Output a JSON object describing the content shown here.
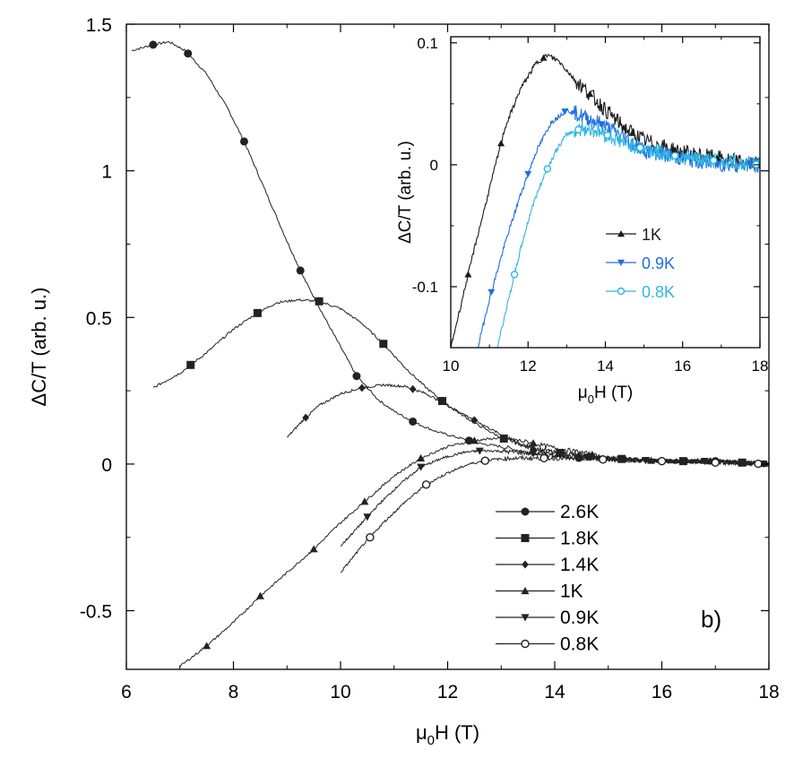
{
  "chart_data": [
    {
      "type": "line",
      "xlabel": "μ0H (T)",
      "ylabel": "ΔC/T (arb. u.)",
      "xlim": [
        6,
        18
      ],
      "ylim": [
        -0.7,
        1.5
      ],
      "x_ticks": [
        "6",
        "8",
        "10",
        "12",
        "14",
        "16",
        "18"
      ],
      "y_ticks": [
        "-0.5",
        "0",
        "0.5",
        "1",
        "1.5"
      ],
      "panel_label": "b)",
      "legend_position": "lower-right",
      "series": [
        {
          "name": "2.6K",
          "marker": "circle-filled",
          "x": [
            6.1,
            6.5,
            6.8,
            7.1,
            7.5,
            7.9,
            8.2,
            8.6,
            9.0,
            9.3,
            9.7,
            10.0,
            10.3,
            10.7,
            11.0,
            11.4,
            11.8,
            12.2,
            12.6,
            13.0,
            13.5,
            14.0,
            14.5,
            15.0,
            16.0,
            17.0,
            18.0
          ],
          "y": [
            1.41,
            1.43,
            1.44,
            1.41,
            1.33,
            1.21,
            1.1,
            0.93,
            0.76,
            0.64,
            0.5,
            0.4,
            0.3,
            0.22,
            0.18,
            0.14,
            0.11,
            0.09,
            0.07,
            0.06,
            0.04,
            0.03,
            0.02,
            0.015,
            0.01,
            0.01,
            0.0
          ],
          "marker_x": [
            6.5,
            7.15,
            8.2,
            9.25,
            10.3,
            11.35,
            12.4,
            14.45,
            17.0
          ]
        },
        {
          "name": "1.8K",
          "marker": "square-filled",
          "x": [
            6.5,
            7.0,
            7.5,
            8.0,
            8.4,
            8.8,
            9.2,
            9.6,
            10.0,
            10.4,
            10.8,
            11.2,
            11.6,
            12.0,
            12.5,
            13.0,
            13.5,
            14.0,
            15.0,
            16.0,
            17.0,
            18.0
          ],
          "y": [
            0.26,
            0.31,
            0.38,
            0.46,
            0.51,
            0.55,
            0.56,
            0.555,
            0.53,
            0.48,
            0.41,
            0.33,
            0.26,
            0.2,
            0.14,
            0.09,
            0.06,
            0.04,
            0.02,
            0.01,
            0.01,
            0.0
          ],
          "marker_x": [
            7.2,
            8.45,
            9.6,
            10.8,
            11.9,
            13.05,
            14.1,
            15.25,
            16.4,
            17.5
          ]
        },
        {
          "name": "1.4K",
          "marker": "diamond-filled",
          "x": [
            9.0,
            9.3,
            9.6,
            10.0,
            10.4,
            10.8,
            11.2,
            11.6,
            12.0,
            12.4,
            12.8,
            13.2,
            13.6,
            14.0,
            15.0,
            16.0,
            17.0,
            18.0
          ],
          "y": [
            0.09,
            0.15,
            0.2,
            0.24,
            0.26,
            0.27,
            0.265,
            0.24,
            0.2,
            0.16,
            0.12,
            0.08,
            0.05,
            0.04,
            0.02,
            0.01,
            0.01,
            0.0
          ],
          "marker_x": [
            9.35,
            10.4,
            11.35,
            12.5,
            13.6,
            14.65
          ]
        },
        {
          "name": "1K",
          "marker": "triangle-up-filled",
          "x": [
            7.0,
            7.5,
            8.0,
            8.5,
            9.0,
            9.5,
            10.0,
            10.5,
            11.0,
            11.5,
            12.0,
            12.5,
            13.0,
            13.5,
            14.0,
            14.5,
            15.0,
            16.0,
            17.0,
            18.0
          ],
          "y": [
            -0.69,
            -0.62,
            -0.54,
            -0.45,
            -0.37,
            -0.29,
            -0.2,
            -0.12,
            -0.04,
            0.02,
            0.06,
            0.08,
            0.09,
            0.075,
            0.055,
            0.04,
            0.02,
            0.01,
            0.01,
            0.0
          ],
          "marker_x": [
            7.5,
            8.5,
            9.5,
            10.45,
            11.5,
            12.5,
            13.6,
            14.7,
            15.8,
            16.9,
            17.9
          ]
        },
        {
          "name": "0.9K",
          "marker": "triangle-down-filled",
          "x": [
            10.0,
            10.3,
            10.7,
            11.1,
            11.5,
            11.9,
            12.3,
            12.6,
            12.9,
            13.3,
            13.7,
            14.0,
            15.0,
            16.0,
            17.0,
            18.0
          ],
          "y": [
            -0.28,
            -0.22,
            -0.14,
            -0.07,
            -0.01,
            0.02,
            0.04,
            0.045,
            0.045,
            0.04,
            0.035,
            0.03,
            0.02,
            0.01,
            0.01,
            0.0
          ],
          "marker_x": [
            10.5,
            11.5,
            12.6,
            13.6,
            14.6,
            15.7,
            16.8,
            17.9
          ]
        },
        {
          "name": "0.8K",
          "marker": "circle-open",
          "x": [
            10.0,
            10.4,
            10.8,
            11.2,
            11.6,
            12.0,
            12.4,
            12.8,
            13.2,
            13.6,
            14.0,
            15.0,
            16.0,
            17.0,
            18.0
          ],
          "y": [
            -0.37,
            -0.28,
            -0.2,
            -0.13,
            -0.07,
            -0.03,
            0.0,
            0.015,
            0.02,
            0.02,
            0.02,
            0.015,
            0.01,
            0.005,
            0.0
          ],
          "marker_x": [
            10.55,
            11.6,
            12.7,
            13.8,
            14.9,
            16.0,
            17.0,
            17.8
          ]
        }
      ]
    },
    {
      "type": "line",
      "inset": true,
      "xlabel": "μ0H (T)",
      "ylabel": "ΔC/T (arb. u.)",
      "xlim": [
        10,
        18
      ],
      "ylim": [
        -0.15,
        0.105
      ],
      "x_ticks": [
        "10",
        "12",
        "14",
        "16",
        "18"
      ],
      "y_ticks": [
        "-0.1",
        "0",
        "0.1"
      ],
      "legend_position": "lower-center",
      "series": [
        {
          "name": "1K",
          "marker": "triangle-up-filled",
          "color": "#1a1a1a",
          "x": [
            10.0,
            10.3,
            10.6,
            11.0,
            11.4,
            11.8,
            12.2,
            12.5,
            12.8,
            13.2,
            13.6,
            14.0,
            14.5,
            15.0,
            16.0,
            17.0,
            18.0
          ],
          "y": [
            -0.15,
            -0.11,
            -0.07,
            -0.02,
            0.03,
            0.062,
            0.083,
            0.09,
            0.085,
            0.07,
            0.058,
            0.045,
            0.03,
            0.02,
            0.01,
            0.005,
            0.0
          ],
          "marker_x": [
            10.45,
            11.3,
            12.4,
            13.6,
            14.7,
            15.8,
            16.9,
            17.9
          ]
        },
        {
          "name": "0.9K",
          "marker": "triangle-down-filled",
          "color": "#1f6fe0",
          "x": [
            10.7,
            11.0,
            11.4,
            11.8,
            12.2,
            12.6,
            13.0,
            13.4,
            13.8,
            14.2,
            14.6,
            15.0,
            16.0,
            17.0,
            18.0
          ],
          "y": [
            -0.15,
            -0.11,
            -0.065,
            -0.025,
            0.01,
            0.035,
            0.045,
            0.04,
            0.035,
            0.028,
            0.02,
            0.012,
            0.005,
            0.0,
            0.0
          ],
          "marker_x": [
            11.05,
            12.0,
            12.95,
            13.9,
            14.85,
            15.85,
            16.9,
            17.75
          ]
        },
        {
          "name": "0.8K",
          "marker": "circle-open",
          "color": "#2fb6e6",
          "x": [
            11.2,
            11.5,
            11.8,
            12.1,
            12.4,
            12.7,
            13.0,
            13.4,
            13.8,
            14.2,
            14.6,
            15.0,
            16.0,
            17.0,
            18.0
          ],
          "y": [
            -0.15,
            -0.11,
            -0.07,
            -0.035,
            -0.01,
            0.01,
            0.025,
            0.03,
            0.028,
            0.022,
            0.017,
            0.013,
            0.006,
            0.003,
            0.0
          ],
          "marker_x": [
            11.65,
            12.5,
            13.3,
            14.05,
            14.9,
            15.8,
            16.8,
            17.9
          ]
        }
      ]
    }
  ]
}
